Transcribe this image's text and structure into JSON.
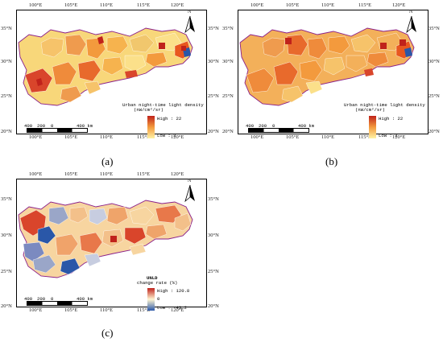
{
  "panels": [
    {
      "caption": "(a)",
      "lon_ticks": [
        "100°E",
        "105°E",
        "110°E",
        "115°E",
        "120°E"
      ],
      "lat_ticks": [
        "35°N",
        "30°N",
        "25°N",
        "20°N"
      ],
      "legend": {
        "title_line1": "Urban night-time light density",
        "title_line2": "(nW/cm²/sr)",
        "high": "High : 22",
        "low": "Low : 2"
      },
      "scale": [
        "400",
        "200",
        "0",
        "400 km"
      ],
      "north": "N"
    },
    {
      "caption": "(b)",
      "lon_ticks": [
        "100°E",
        "105°E",
        "110°E",
        "115°E",
        "120°E"
      ],
      "lat_ticks": [
        "35°N",
        "30°N",
        "25°N",
        "20°N"
      ],
      "legend": {
        "title_line1": "Urban night-time light density",
        "title_line2": "(nW/cm²/sr)",
        "high": "High : 22",
        "low": "Low : 2"
      },
      "scale": [
        "400",
        "200",
        "0",
        "400 km"
      ],
      "north": "N"
    },
    {
      "caption": "(c)",
      "lon_ticks": [
        "100°E",
        "105°E",
        "110°E",
        "115°E",
        "120°E"
      ],
      "lat_ticks": [
        "35°N",
        "30°N",
        "25°N",
        "20°N"
      ],
      "legend": {
        "title_line1": "UNLD",
        "title_line2": "change rate (%)",
        "high": "High : 120.8",
        "mid": "0",
        "low": "Low : -43.2"
      },
      "scale": [
        "400",
        "200",
        "0",
        "400 km"
      ],
      "north": "N"
    }
  ],
  "colors": {
    "ramp_high": "#c0221b",
    "ramp_mid": "#f39a3d",
    "ramp_low": "#fff3a6",
    "div_high": "#c0221b",
    "div_mid": "#fff6d2",
    "div_low": "#2a57a8",
    "boundary": "#8a1f8a"
  }
}
